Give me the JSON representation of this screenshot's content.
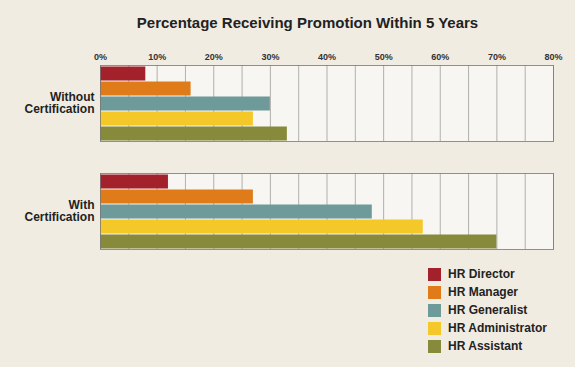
{
  "chart_data": {
    "type": "bar",
    "orientation": "horizontal",
    "title": "Percentage Receiving Promotion Within 5 Years",
    "categories": [
      "Without Certification",
      "With Certification"
    ],
    "series": [
      {
        "name": "HR Director",
        "color": "#a3212a",
        "values": [
          8,
          12
        ]
      },
      {
        "name": "HR Manager",
        "color": "#e07b1a",
        "values": [
          16,
          27
        ]
      },
      {
        "name": "HR Generalist",
        "color": "#6f9a9a",
        "values": [
          30,
          48
        ]
      },
      {
        "name": "HR Administrator",
        "color": "#f5c82a",
        "values": [
          27,
          57
        ]
      },
      {
        "name": "HR Assistant",
        "color": "#878a3a",
        "values": [
          33,
          70
        ]
      }
    ],
    "xlim": [
      0,
      80
    ],
    "xticks": [
      {
        "value": 0,
        "label": "0%"
      },
      {
        "value": 10,
        "label": "10%"
      },
      {
        "value": 20,
        "label": "20%"
      },
      {
        "value": 30,
        "label": "30%"
      },
      {
        "value": 40,
        "label": "40%"
      },
      {
        "value": 50,
        "label": "50%"
      },
      {
        "value": 60,
        "label": "60%"
      },
      {
        "value": 70,
        "label": "70%"
      },
      {
        "value": 80,
        "label": "80%"
      }
    ],
    "grid": true,
    "legend": "bottom-right"
  }
}
